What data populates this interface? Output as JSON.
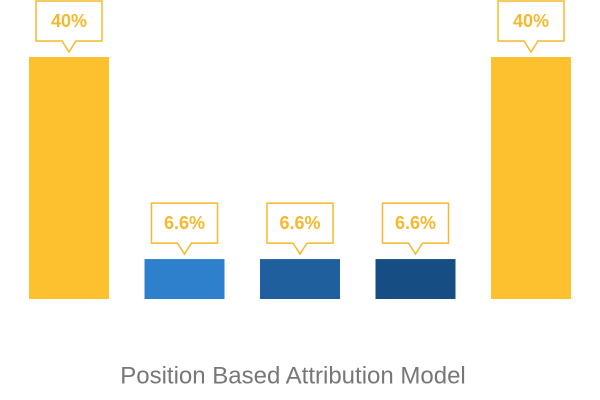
{
  "chart_data": {
    "type": "bar",
    "title": "Position Based Attribution Model",
    "categories": [
      null,
      null,
      null,
      null,
      null
    ],
    "values": [
      40,
      6.6,
      6.6,
      6.6,
      40
    ],
    "value_labels": [
      "40%",
      "6.6%",
      "6.6%",
      "6.6%",
      "40%"
    ],
    "colors": [
      "#fdc02f",
      "#2f80cc",
      "#1f5f9e",
      "#164e84",
      "#fdc02f"
    ],
    "label_color": "#f5b82e"
  }
}
